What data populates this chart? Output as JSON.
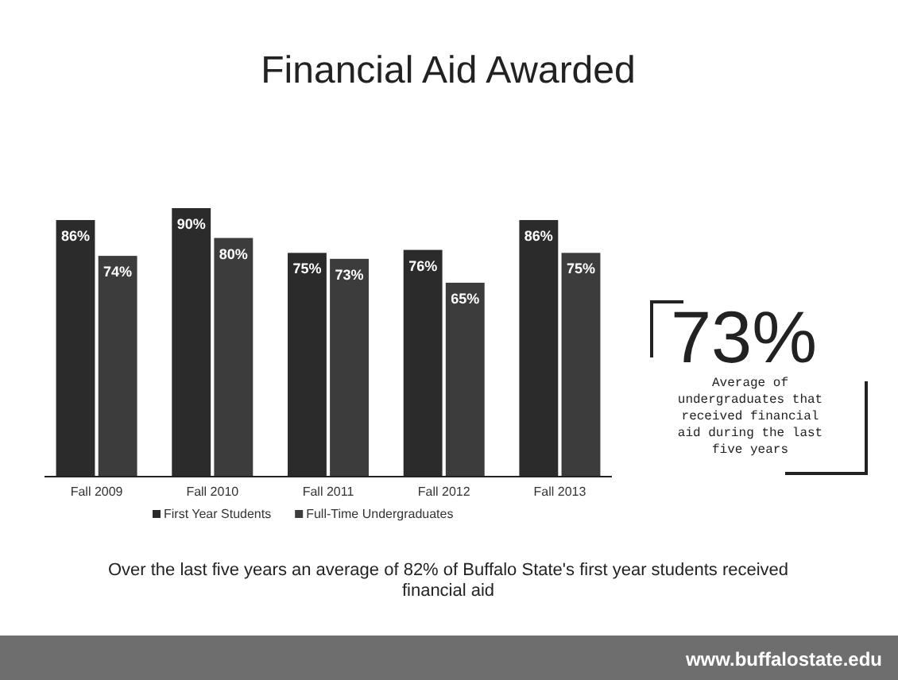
{
  "chart_data": {
    "type": "bar",
    "title": "Financial Aid Awarded",
    "categories": [
      "Fall 2009",
      "Fall 2010",
      "Fall 2011",
      "Fall 2012",
      "Fall 2013"
    ],
    "series": [
      {
        "name": "First Year Students",
        "color": "#2b2b2b",
        "values": [
          86,
          90,
          75,
          76,
          86
        ],
        "value_labels": [
          "86%",
          "90%",
          "75%",
          "76%",
          "86%"
        ]
      },
      {
        "name": "Full-Time Undergraduates",
        "color": "#3c3c3c",
        "values": [
          74,
          80,
          73,
          65,
          75
        ],
        "value_labels": [
          "74%",
          "80%",
          "73%",
          "65%",
          "75%"
        ]
      }
    ],
    "legend": "bottom",
    "annotations": [
      "73%",
      "Average of undergraduates that received financial aid during the last five years",
      "Over the last five years an average of 82% of Buffalo State's first year students received financial aid",
      "www.buffalostate.edu"
    ]
  }
}
